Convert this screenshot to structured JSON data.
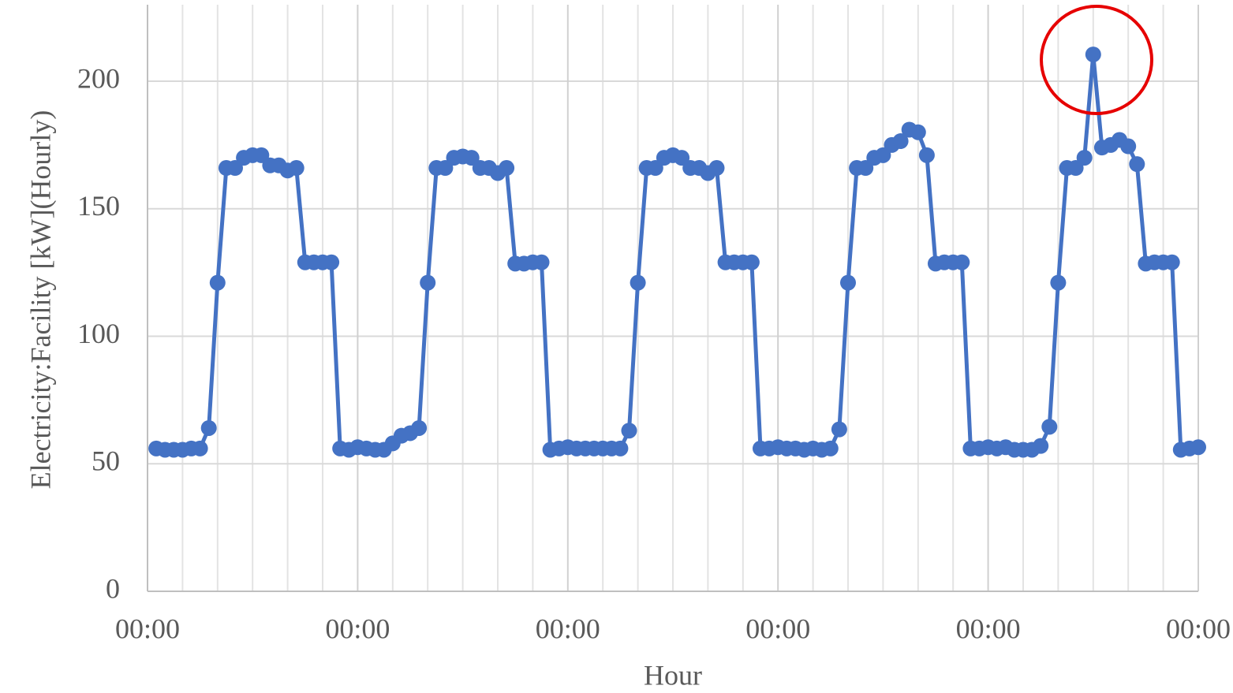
{
  "chart_data": {
    "type": "line",
    "xlabel": "Hour",
    "ylabel": "Electricity:Facility [kW](Hourly)",
    "x": [
      1,
      2,
      3,
      4,
      5,
      6,
      7,
      8,
      9,
      10,
      11,
      12,
      13,
      14,
      15,
      16,
      17,
      18,
      19,
      20,
      21,
      22,
      23,
      24,
      25,
      26,
      27,
      28,
      29,
      30,
      31,
      32,
      33,
      34,
      35,
      36,
      37,
      38,
      39,
      40,
      41,
      42,
      43,
      44,
      45,
      46,
      47,
      48,
      49,
      50,
      51,
      52,
      53,
      54,
      55,
      56,
      57,
      58,
      59,
      60,
      61,
      62,
      63,
      64,
      65,
      66,
      67,
      68,
      69,
      70,
      71,
      72,
      73,
      74,
      75,
      76,
      77,
      78,
      79,
      80,
      81,
      82,
      83,
      84,
      85,
      86,
      87,
      88,
      89,
      90,
      91,
      92,
      93,
      94,
      95,
      96,
      97,
      98,
      99,
      100,
      101,
      102,
      103,
      104,
      105,
      106,
      107,
      108,
      109,
      110,
      111,
      112,
      113,
      114,
      115,
      116,
      117,
      118,
      119,
      120
    ],
    "series": [
      {
        "color": "#4472c4",
        "values": [
          56,
          55.5,
          55.5,
          55.5,
          56,
          56,
          64,
          121,
          166,
          166,
          170,
          171,
          171,
          167,
          167,
          165,
          166,
          129,
          129,
          129,
          129,
          56,
          55.5,
          56.5,
          56,
          55.5,
          55.5,
          58,
          61,
          62,
          64,
          121,
          166,
          166,
          170,
          170.5,
          170,
          166,
          166,
          164,
          166,
          128.5,
          128.5,
          129,
          129,
          55.5,
          56,
          56.5,
          56,
          56,
          56,
          56,
          56,
          56,
          63,
          121,
          166,
          166,
          170,
          171,
          170,
          166,
          166,
          164,
          166,
          129,
          129,
          129,
          129,
          56,
          56,
          56.5,
          56,
          56,
          55.5,
          56,
          55.5,
          56,
          63.5,
          121,
          166,
          166,
          170,
          171,
          175,
          176.5,
          181,
          180,
          171,
          128.5,
          129,
          129,
          129,
          56,
          56,
          56.5,
          56,
          56.5,
          55.5,
          55.5,
          55.5,
          57,
          64.5,
          121,
          166,
          166,
          170,
          210.5,
          174,
          175,
          177,
          174.5,
          167.5,
          128.5,
          129,
          129,
          129,
          55.5,
          56,
          56.5
        ]
      }
    ],
    "xlim": [
      0,
      120
    ],
    "ylim": [
      0,
      230
    ],
    "xticks": [
      {
        "value": 0,
        "label": "00:00"
      },
      {
        "value": 24,
        "label": "00:00"
      },
      {
        "value": 48,
        "label": "00:00"
      },
      {
        "value": 72,
        "label": "00:00"
      },
      {
        "value": 96,
        "label": "00:00"
      },
      {
        "value": 120,
        "label": "00:00"
      }
    ],
    "x_minor_grid": [
      4,
      8,
      12,
      16,
      20,
      28,
      32,
      36,
      40,
      44,
      52,
      56,
      60,
      64,
      68,
      76,
      80,
      84,
      88,
      92,
      100,
      104,
      108,
      112,
      116
    ],
    "yticks": [
      0,
      50,
      100,
      150,
      200
    ],
    "grid": true
  }
}
